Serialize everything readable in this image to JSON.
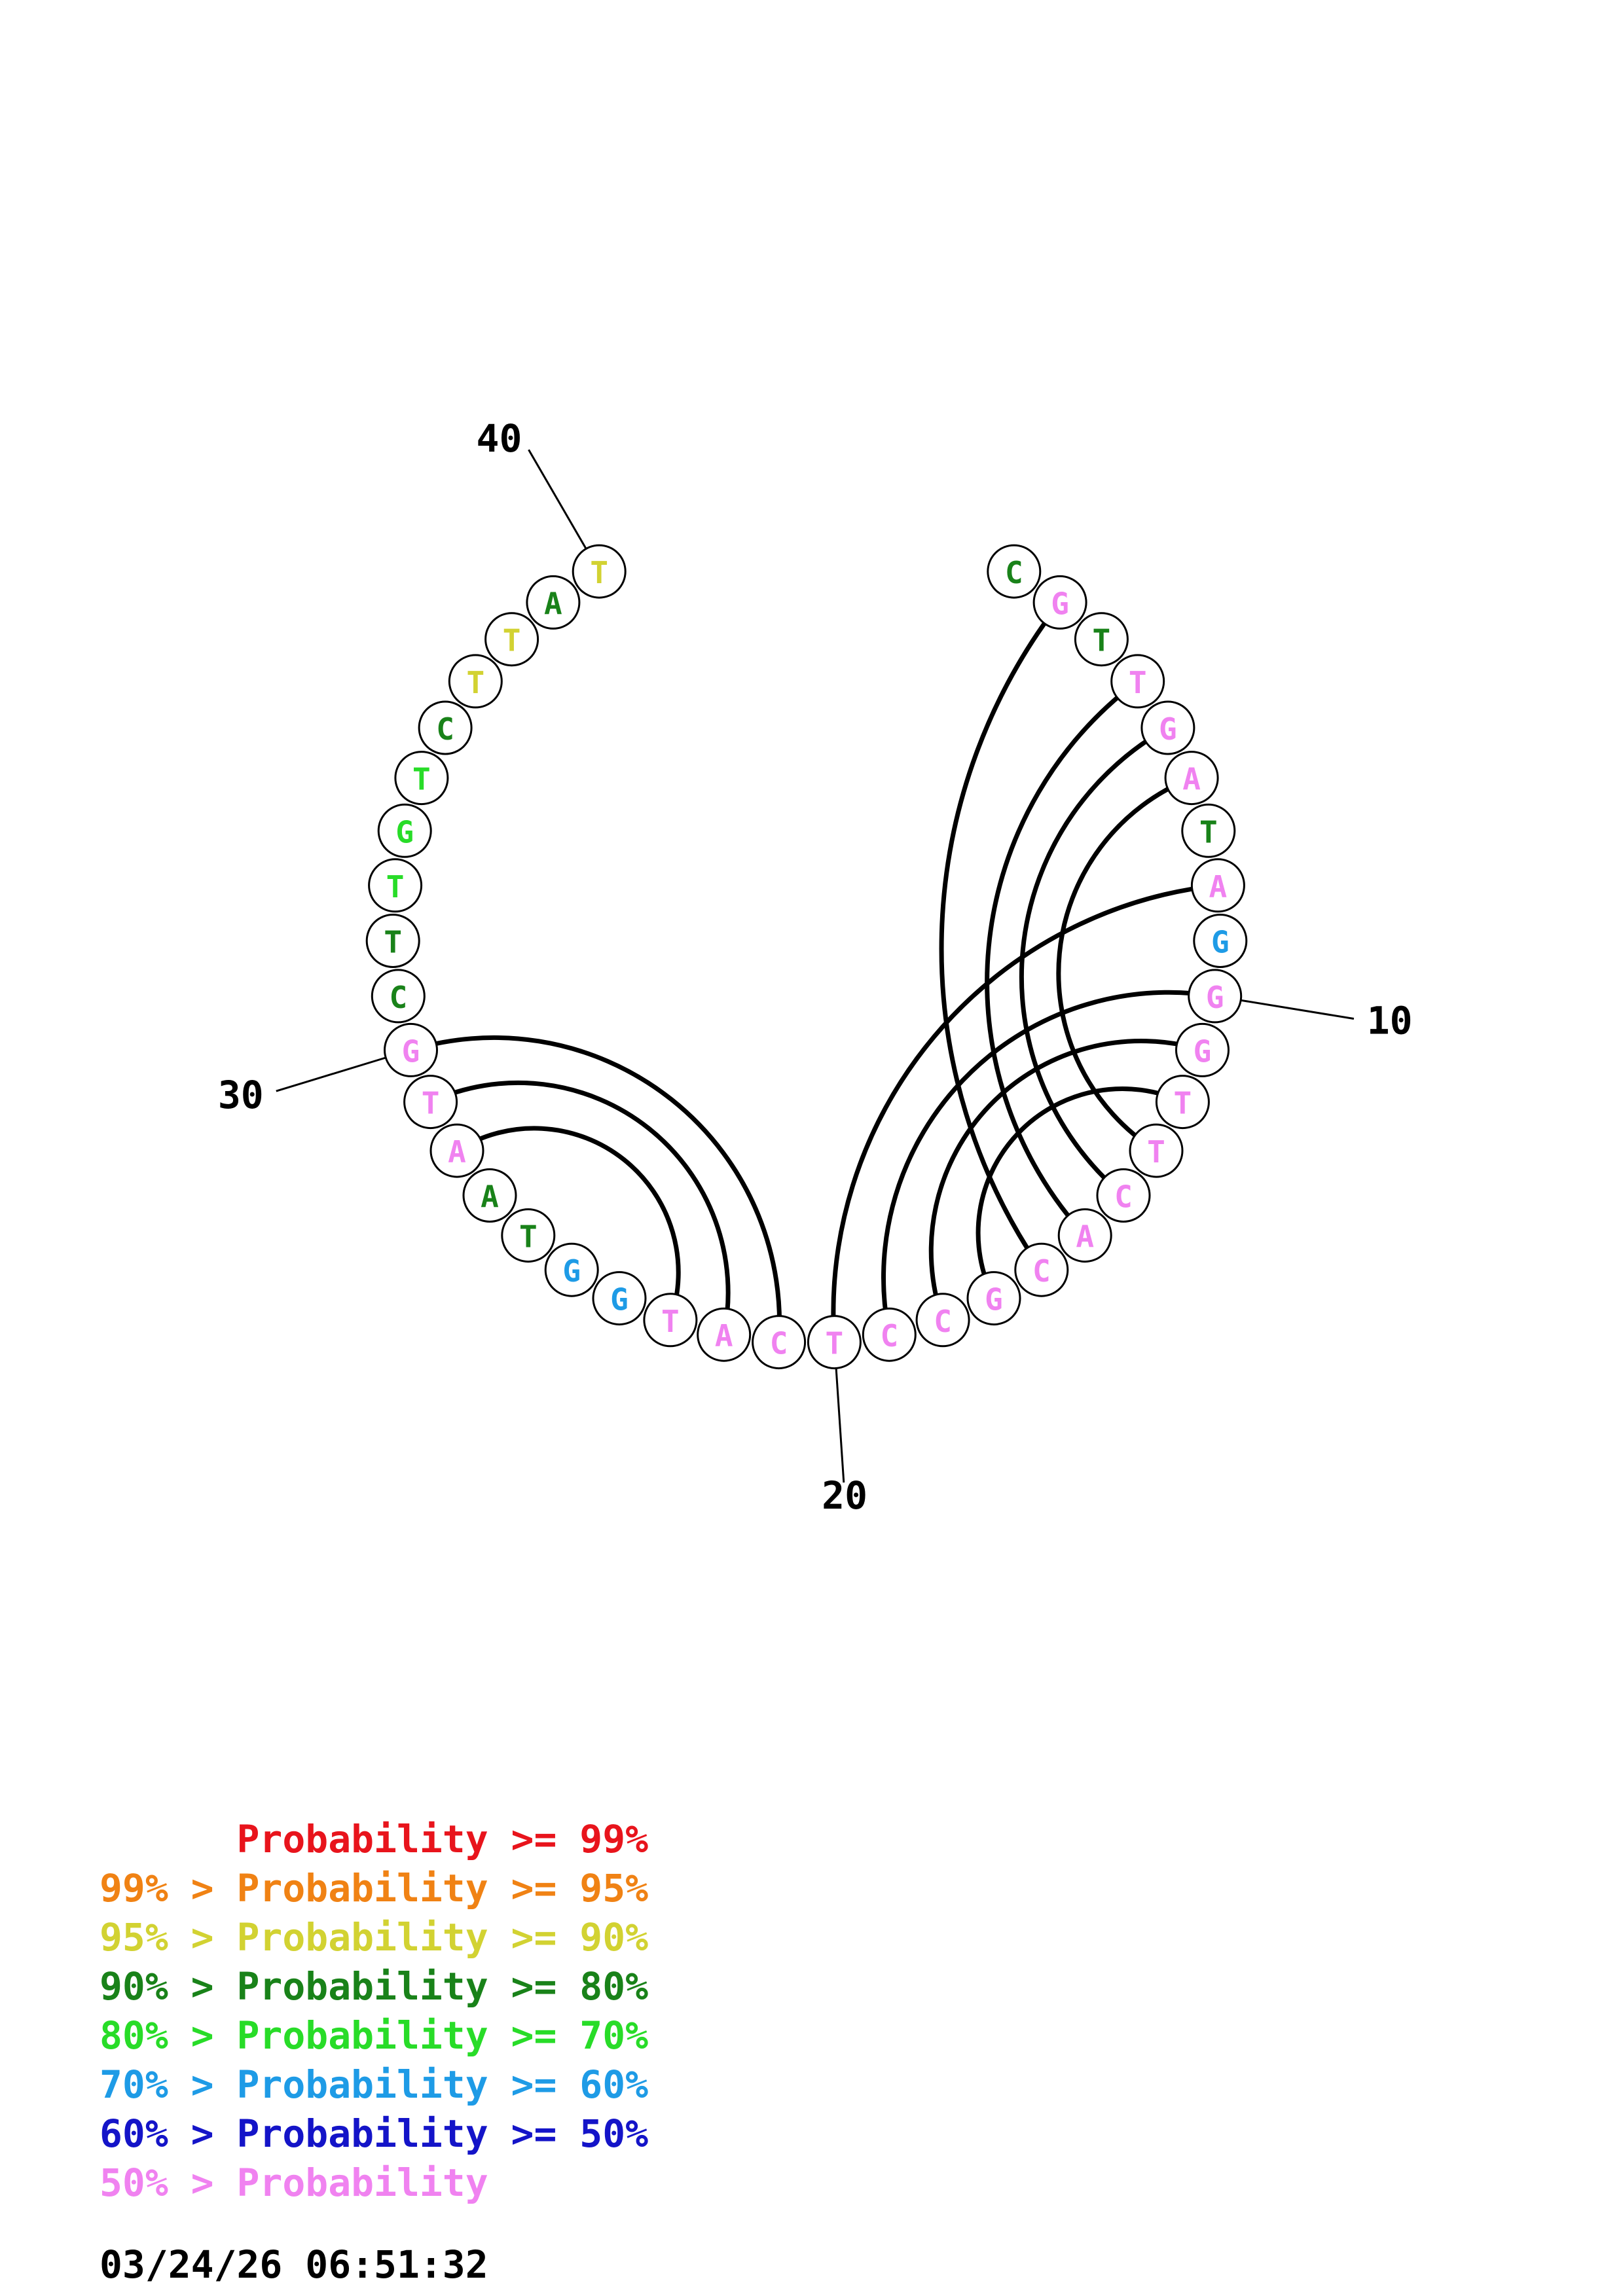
{
  "colors": {
    "p99": "#e8141c",
    "p95": "#f08214",
    "p90": "#d2d232",
    "p80": "#198219",
    "p70": "#28dc28",
    "p60": "#1e9be6",
    "p50": "#1414c8",
    "plow": "#f082f0"
  },
  "sequence": [
    {
      "n": 1,
      "base": "C",
      "prob": "p80"
    },
    {
      "n": 2,
      "base": "G",
      "prob": "plow"
    },
    {
      "n": 3,
      "base": "T",
      "prob": "p80"
    },
    {
      "n": 4,
      "base": "T",
      "prob": "plow"
    },
    {
      "n": 5,
      "base": "G",
      "prob": "plow"
    },
    {
      "n": 6,
      "base": "A",
      "prob": "plow"
    },
    {
      "n": 7,
      "base": "T",
      "prob": "p80"
    },
    {
      "n": 8,
      "base": "A",
      "prob": "plow"
    },
    {
      "n": 9,
      "base": "G",
      "prob": "p60"
    },
    {
      "n": 10,
      "base": "G",
      "prob": "plow"
    },
    {
      "n": 11,
      "base": "G",
      "prob": "plow"
    },
    {
      "n": 12,
      "base": "T",
      "prob": "plow"
    },
    {
      "n": 13,
      "base": "T",
      "prob": "plow"
    },
    {
      "n": 14,
      "base": "C",
      "prob": "plow"
    },
    {
      "n": 15,
      "base": "A",
      "prob": "plow"
    },
    {
      "n": 16,
      "base": "C",
      "prob": "plow"
    },
    {
      "n": 17,
      "base": "G",
      "prob": "plow"
    },
    {
      "n": 18,
      "base": "C",
      "prob": "plow"
    },
    {
      "n": 19,
      "base": "C",
      "prob": "plow"
    },
    {
      "n": 20,
      "base": "T",
      "prob": "plow"
    },
    {
      "n": 21,
      "base": "C",
      "prob": "plow"
    },
    {
      "n": 22,
      "base": "A",
      "prob": "plow"
    },
    {
      "n": 23,
      "base": "T",
      "prob": "plow"
    },
    {
      "n": 24,
      "base": "G",
      "prob": "p60"
    },
    {
      "n": 25,
      "base": "G",
      "prob": "p60"
    },
    {
      "n": 26,
      "base": "T",
      "prob": "p80"
    },
    {
      "n": 27,
      "base": "A",
      "prob": "p80"
    },
    {
      "n": 28,
      "base": "A",
      "prob": "plow"
    },
    {
      "n": 29,
      "base": "T",
      "prob": "plow"
    },
    {
      "n": 30,
      "base": "G",
      "prob": "plow"
    },
    {
      "n": 31,
      "base": "C",
      "prob": "p80"
    },
    {
      "n": 32,
      "base": "T",
      "prob": "p80"
    },
    {
      "n": 33,
      "base": "T",
      "prob": "p70"
    },
    {
      "n": 34,
      "base": "G",
      "prob": "p70"
    },
    {
      "n": 35,
      "base": "T",
      "prob": "p70"
    },
    {
      "n": 36,
      "base": "C",
      "prob": "p80"
    },
    {
      "n": 37,
      "base": "T",
      "prob": "p90"
    },
    {
      "n": 38,
      "base": "T",
      "prob": "p90"
    },
    {
      "n": 39,
      "base": "A",
      "prob": "p80"
    },
    {
      "n": 40,
      "base": "T",
      "prob": "p90"
    }
  ],
  "pairs": [
    [
      2,
      16
    ],
    [
      4,
      15
    ],
    [
      5,
      14
    ],
    [
      6,
      13
    ],
    [
      8,
      20
    ],
    [
      10,
      19
    ],
    [
      11,
      18
    ],
    [
      12,
      17
    ],
    [
      21,
      30
    ],
    [
      22,
      29
    ],
    [
      23,
      28
    ]
  ],
  "tick_labels": [
    {
      "n": 10,
      "label": "10"
    },
    {
      "n": 20,
      "label": "20"
    },
    {
      "n": 30,
      "label": "30"
    },
    {
      "n": 40,
      "label": "40"
    }
  ],
  "legend": [
    {
      "prefix": "",
      "text": "Probability >= 99%",
      "color": "p99"
    },
    {
      "prefix": "99% > ",
      "text": "Probability >= 95%",
      "color": "p95"
    },
    {
      "prefix": "95% > ",
      "text": "Probability >= 90%",
      "color": "p90"
    },
    {
      "prefix": "90% > ",
      "text": "Probability >= 80%",
      "color": "p80"
    },
    {
      "prefix": "80% > ",
      "text": "Probability >= 70%",
      "color": "p70"
    },
    {
      "prefix": "70% > ",
      "text": "Probability >= 60%",
      "color": "p60"
    },
    {
      "prefix": "60% > ",
      "text": "Probability >= 50%",
      "color": "p50"
    },
    {
      "prefix": "50% > ",
      "text": "Probability",
      "color": "plow"
    }
  ],
  "timestamp": "03/24/26 06:51:32"
}
